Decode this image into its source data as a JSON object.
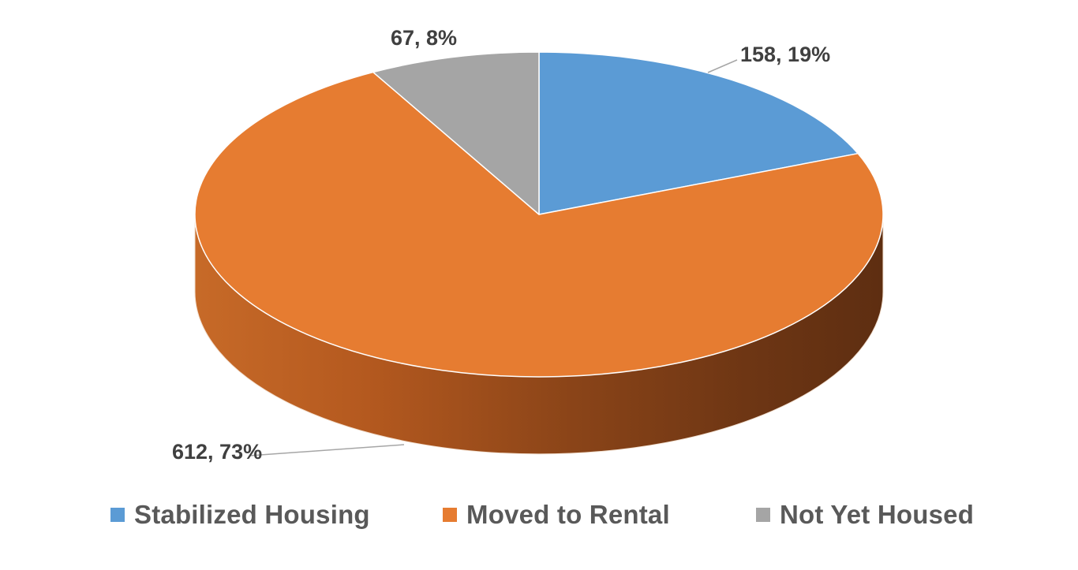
{
  "chart_data": {
    "type": "pie",
    "style": "3d",
    "title": "",
    "slices": [
      {
        "name": "Stabilized Housing",
        "value": 158,
        "percent": 19,
        "label": "158, 19%",
        "color": "#5B9BD5"
      },
      {
        "name": "Moved to Rental",
        "value": 612,
        "percent": 73,
        "label": "612, 73%",
        "color": "#E67C31"
      },
      {
        "name": "Not Yet Housed",
        "value": 67,
        "percent": 8,
        "label": "67, 8%",
        "color": "#A5A5A5"
      }
    ],
    "legend": {
      "placement": "bottom",
      "items": [
        "Stabilized Housing",
        "Moved to Rental",
        "Not Yet Housed"
      ]
    }
  }
}
